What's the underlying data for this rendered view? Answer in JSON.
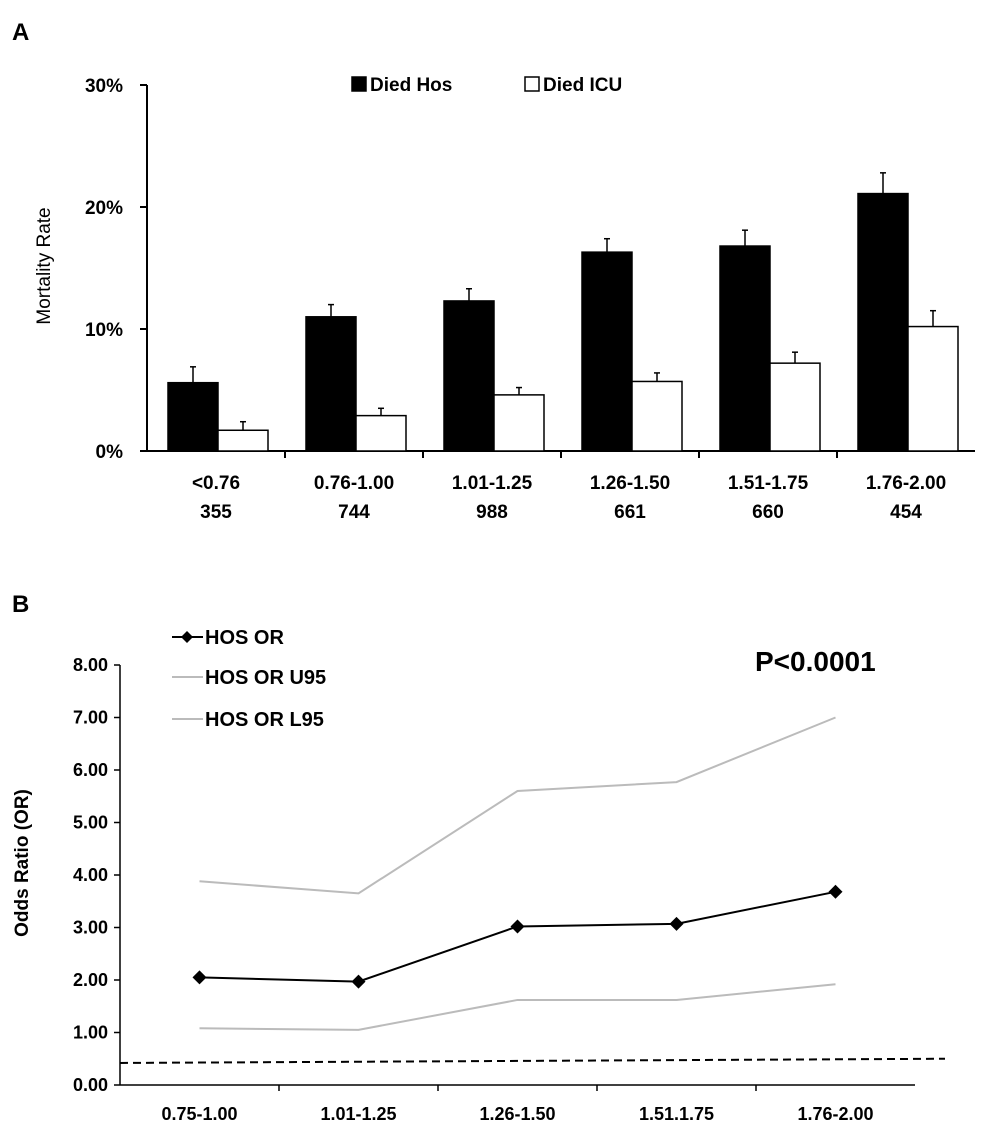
{
  "chart_data": [
    {
      "panel_label": "A",
      "type": "bar",
      "ylabel": "Mortality Rate",
      "ylim": [
        0,
        30
      ],
      "y_ticks": [
        "0%",
        "10%",
        "20%",
        "30%"
      ],
      "categories": [
        "<0.76",
        "0.76-1.00",
        "1.01-1.25",
        "1.26-1.50",
        "1.51-1.75",
        "1.76-2.00"
      ],
      "category_counts": [
        "355",
        "744",
        "988",
        "661",
        "660",
        "454"
      ],
      "legend_position": "top",
      "series": [
        {
          "name": "Died Hos",
          "color": "#000000",
          "values": [
            5.6,
            11.0,
            12.3,
            16.3,
            16.8,
            21.1
          ],
          "error": [
            1.3,
            1.0,
            1.0,
            1.1,
            1.3,
            1.7
          ]
        },
        {
          "name": "Died ICU",
          "color": "#ffffff",
          "values": [
            1.7,
            2.9,
            4.6,
            5.7,
            7.2,
            10.2
          ],
          "error": [
            0.7,
            0.6,
            0.6,
            0.7,
            0.9,
            1.3
          ]
        }
      ]
    },
    {
      "panel_label": "B",
      "type": "line",
      "ylabel": "Odds Ratio (OR)",
      "ylim": [
        0,
        8
      ],
      "y_ticks": [
        "0.00",
        "1.00",
        "2.00",
        "3.00",
        "4.00",
        "5.00",
        "6.00",
        "7.00",
        "8.00"
      ],
      "categories": [
        "0.75-1.00",
        "1.01-1.25",
        "1.26-1.50",
        "1.51.1.75",
        "1.76-2.00"
      ],
      "annotation": "P<0.0001",
      "legend_position": "top-left",
      "series": [
        {
          "name": "HOS OR",
          "color": "#000000",
          "marker": "diamond",
          "values": [
            2.05,
            1.97,
            3.02,
            3.07,
            3.68
          ]
        },
        {
          "name": "HOS OR U95",
          "color": "#bbbbbb",
          "values": [
            3.88,
            3.65,
            5.6,
            5.77,
            7.0
          ]
        },
        {
          "name": "HOS OR L95",
          "color": "#bbbbbb",
          "values": [
            1.08,
            1.05,
            1.62,
            1.62,
            1.92
          ]
        }
      ],
      "reference_line": {
        "start": 0.42,
        "end": 0.5,
        "style": "dashed"
      }
    }
  ]
}
